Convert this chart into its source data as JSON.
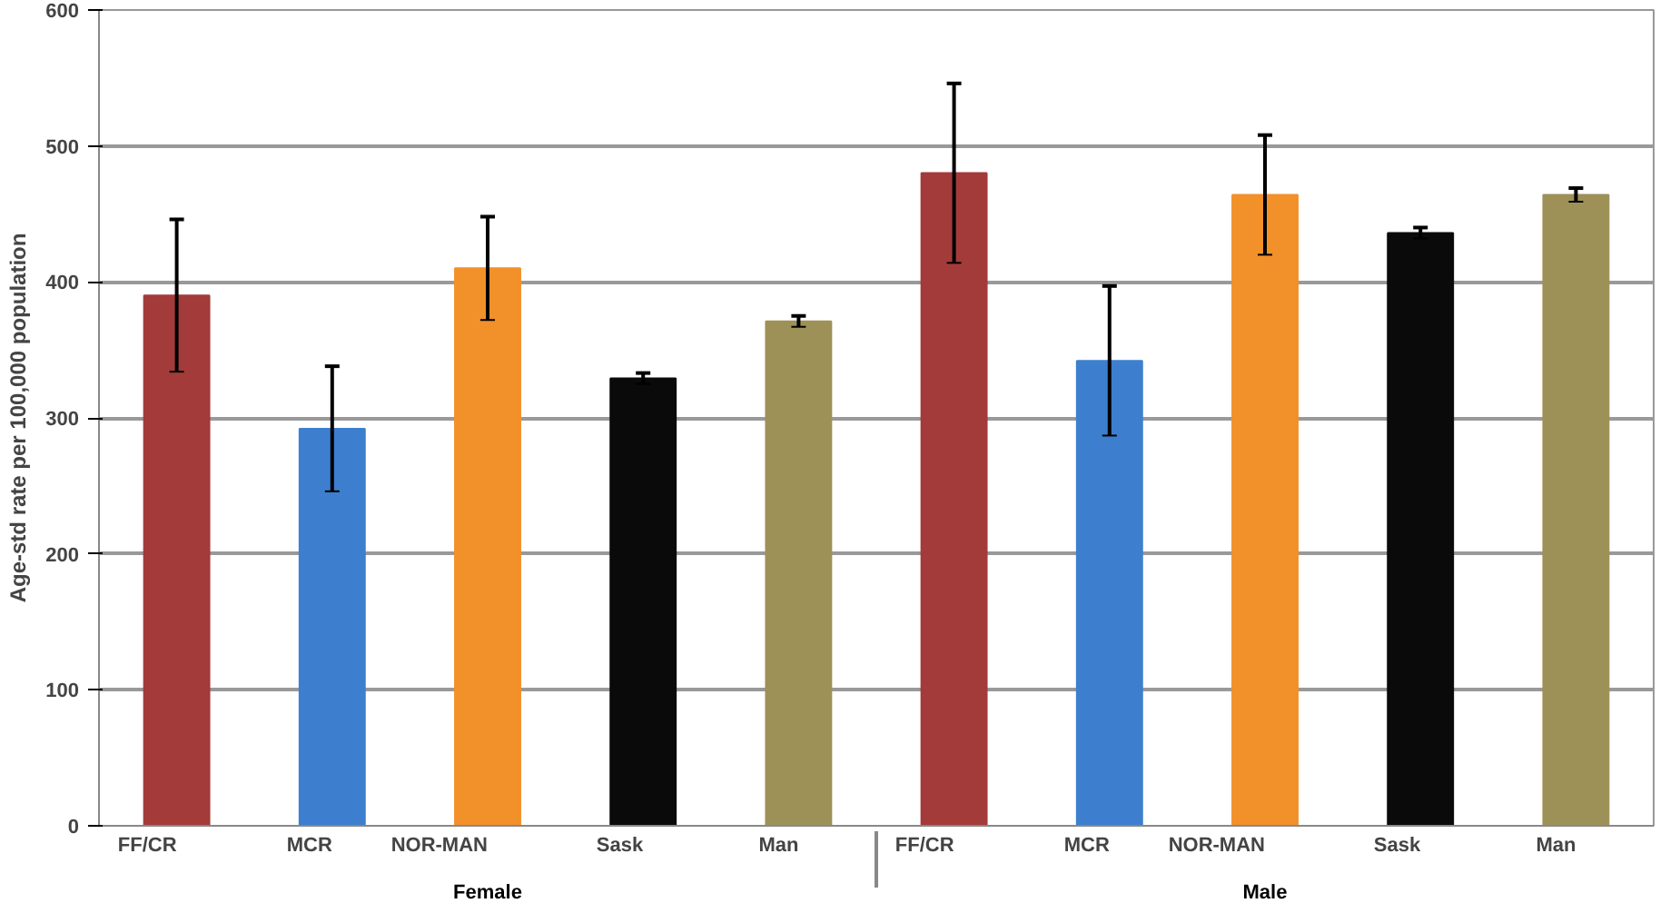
{
  "chart_data": {
    "type": "bar",
    "ylabel": "Age-std rate per 100,000 population",
    "categories": [
      "FF/CR",
      "MCR",
      "NOR-MAN",
      "Sask",
      "Man",
      "FF/CR",
      "MCR",
      "NOR-MAN",
      "Sask",
      "Man"
    ],
    "values": [
      390,
      292,
      410,
      329,
      371,
      480,
      342,
      464,
      436,
      464
    ],
    "errors": [
      56,
      46,
      38,
      4,
      4,
      66,
      55,
      44,
      4,
      5
    ],
    "colors": [
      "#a33b3b",
      "#3d7fce",
      "#f2902a",
      "#0a0a0a",
      "#9e9158",
      "#a33b3b",
      "#3d7fce",
      "#f2902a",
      "#0a0a0a",
      "#9e9158"
    ],
    "annotations": [
      "Female",
      "Male"
    ],
    "ylim": [
      0,
      600
    ],
    "yticks": [
      0,
      100,
      200,
      300,
      400,
      500,
      600
    ],
    "grid": "y"
  }
}
